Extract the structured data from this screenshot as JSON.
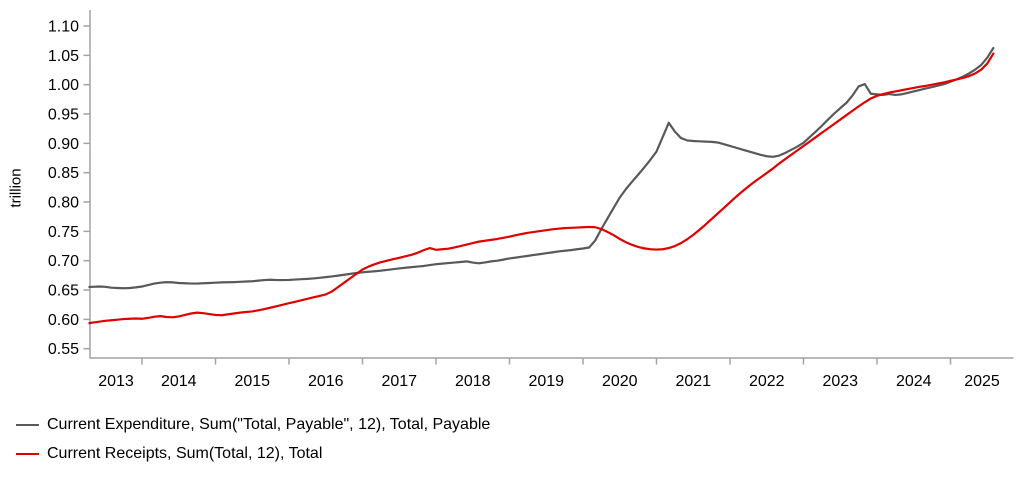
{
  "chart_data": {
    "type": "line",
    "title": "",
    "xlabel": "",
    "ylabel": "trillion",
    "ylim": [
      0.55,
      1.1
    ],
    "ytick_step": 0.05,
    "ytick_labels": [
      "0.55",
      "0.60",
      "0.65",
      "0.70",
      "0.75",
      "0.80",
      "0.85",
      "0.90",
      "0.95",
      "1.00",
      "1.05",
      "1.10"
    ],
    "xtick_labels": [
      "2013",
      "2014",
      "2015",
      "2016",
      "2017",
      "2018",
      "2019",
      "2020",
      "2021",
      "2022",
      "2023",
      "2024",
      "2025"
    ],
    "xlim_years": [
      2013.0,
      2025.86
    ],
    "x_start": 2013.25,
    "x_step": 0.08333333,
    "grid": false,
    "legend_position": "bottom-left",
    "axis_color": "#a3a3a3",
    "series": [
      {
        "name": "Current Expenditure, Sum(\"Total, Payable\", 12), Total, Payable",
        "color": "#595959",
        "values": [
          0.655,
          0.6555,
          0.656,
          0.6555,
          0.654,
          0.6535,
          0.653,
          0.6535,
          0.6545,
          0.656,
          0.6585,
          0.661,
          0.6625,
          0.6635,
          0.663,
          0.662,
          0.6615,
          0.661,
          0.661,
          0.6615,
          0.662,
          0.6625,
          0.663,
          0.6632,
          0.6635,
          0.664,
          0.6645,
          0.665,
          0.666,
          0.667,
          0.6675,
          0.667,
          0.667,
          0.6672,
          0.6678,
          0.6685,
          0.669,
          0.6698,
          0.6708,
          0.672,
          0.6732,
          0.6745,
          0.676,
          0.6775,
          0.679,
          0.6802,
          0.6812,
          0.682,
          0.683,
          0.6842,
          0.6855,
          0.6868,
          0.688,
          0.689,
          0.69,
          0.691,
          0.6925,
          0.694,
          0.695,
          0.696,
          0.6968,
          0.6978,
          0.6988,
          0.6968,
          0.6955,
          0.697,
          0.6988,
          0.7,
          0.7018,
          0.7038,
          0.7052,
          0.7068,
          0.7082,
          0.7098,
          0.7112,
          0.7128,
          0.7142,
          0.7158,
          0.717,
          0.718,
          0.7195,
          0.7208,
          0.7225,
          0.7345,
          0.754,
          0.772,
          0.79,
          0.8075,
          0.822,
          0.8345,
          0.8465,
          0.859,
          0.872,
          0.886,
          0.9105,
          0.935,
          0.92,
          0.909,
          0.905,
          0.904,
          0.9035,
          0.903,
          0.9025,
          0.9015,
          0.8985,
          0.8955,
          0.8925,
          0.8895,
          0.8865,
          0.8835,
          0.8805,
          0.878,
          0.877,
          0.879,
          0.8835,
          0.889,
          0.8945,
          0.901,
          0.9105,
          0.92,
          0.93,
          0.9405,
          0.9505,
          0.96,
          0.969,
          0.9815,
          0.997,
          1.001,
          0.9845,
          0.9835,
          0.9825,
          0.984,
          0.9825,
          0.9835,
          0.986,
          0.9885,
          0.991,
          0.9935,
          0.996,
          0.9985,
          1.001,
          1.005,
          1.009,
          1.0135,
          1.019,
          1.0255,
          1.0335,
          1.046,
          1.0625
        ]
      },
      {
        "name": "Current Receipts, Sum(Total, 12), Total",
        "color": "#e00000",
        "values": [
          0.593,
          0.5945,
          0.596,
          0.5975,
          0.5985,
          0.5995,
          0.6005,
          0.601,
          0.6015,
          0.601,
          0.6025,
          0.6045,
          0.6055,
          0.604,
          0.6035,
          0.605,
          0.6075,
          0.61,
          0.6115,
          0.6105,
          0.609,
          0.6075,
          0.607,
          0.6085,
          0.61,
          0.6115,
          0.6125,
          0.6135,
          0.6155,
          0.6175,
          0.62,
          0.6225,
          0.625,
          0.6275,
          0.63,
          0.6325,
          0.635,
          0.6375,
          0.64,
          0.6425,
          0.6475,
          0.655,
          0.6625,
          0.67,
          0.6775,
          0.685,
          0.69,
          0.694,
          0.6975,
          0.7,
          0.7025,
          0.705,
          0.7075,
          0.71,
          0.7135,
          0.718,
          0.7215,
          0.7185,
          0.7195,
          0.7205,
          0.7225,
          0.725,
          0.7275,
          0.73,
          0.7325,
          0.734,
          0.7355,
          0.737,
          0.739,
          0.741,
          0.7435,
          0.7455,
          0.7475,
          0.749,
          0.7505,
          0.752,
          0.7535,
          0.7545,
          0.7555,
          0.756,
          0.7565,
          0.757,
          0.7575,
          0.757,
          0.754,
          0.749,
          0.7435,
          0.737,
          0.7315,
          0.727,
          0.7235,
          0.721,
          0.7195,
          0.719,
          0.7195,
          0.7215,
          0.725,
          0.73,
          0.7365,
          0.744,
          0.7525,
          0.7615,
          0.771,
          0.7805,
          0.79,
          0.7995,
          0.809,
          0.818,
          0.8265,
          0.8345,
          0.842,
          0.8495,
          0.857,
          0.8655,
          0.873,
          0.8805,
          0.888,
          0.8955,
          0.903,
          0.9105,
          0.918,
          0.9255,
          0.933,
          0.9405,
          0.948,
          0.9555,
          0.963,
          0.97,
          0.9765,
          0.981,
          0.984,
          0.9865,
          0.9885,
          0.9905,
          0.9925,
          0.9945,
          0.9965,
          0.998,
          1.0,
          1.002,
          1.004,
          1.0065,
          1.009,
          1.0115,
          1.0145,
          1.019,
          1.0255,
          1.036,
          1.053
        ]
      }
    ]
  }
}
